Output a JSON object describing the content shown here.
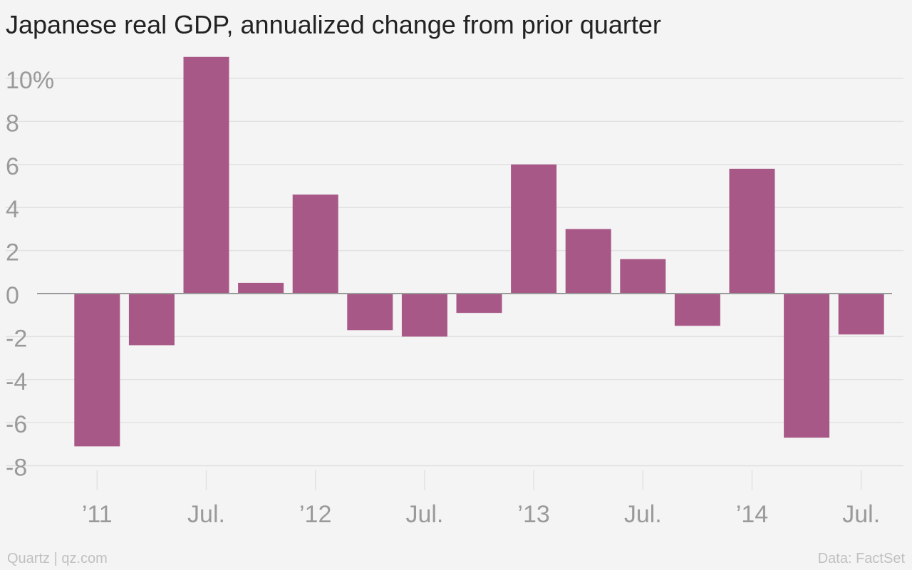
{
  "title": "Japanese real GDP, annualized change from prior quarter",
  "footer_left": "Quartz | qz.com",
  "footer_right": "Data: FactSet",
  "colors": {
    "bar": "#a85887",
    "grid": "#e2e2e2",
    "zero_line": "#9a9a9a",
    "tick_text": "#9a9a9a",
    "background": "#f4f4f4"
  },
  "chart_data": {
    "type": "bar",
    "title": "Japanese real GDP, annualized change from prior quarter",
    "xlabel": "",
    "ylabel": "",
    "ylim": [
      -8,
      11
    ],
    "categories": [
      "Q1 2011",
      "Q2 2011",
      "Q3 2011",
      "Q4 2011",
      "Q1 2012",
      "Q2 2012",
      "Q3 2012",
      "Q4 2012",
      "Q1 2013",
      "Q2 2013",
      "Q3 2013",
      "Q4 2013",
      "Q1 2014",
      "Q2 2014",
      "Q3 2014"
    ],
    "values": [
      -7.1,
      -2.4,
      11.0,
      0.5,
      4.6,
      -1.7,
      -2.0,
      -0.9,
      6.0,
      3.0,
      1.6,
      -1.5,
      5.8,
      -6.7,
      -1.9
    ],
    "y_ticks": [
      {
        "value": 10,
        "label": "10%"
      },
      {
        "value": 8,
        "label": "8"
      },
      {
        "value": 6,
        "label": "6"
      },
      {
        "value": 4,
        "label": "4"
      },
      {
        "value": 2,
        "label": "2"
      },
      {
        "value": 0,
        "label": "0"
      },
      {
        "value": -2,
        "label": "-2"
      },
      {
        "value": -4,
        "label": "-4"
      },
      {
        "value": -6,
        "label": "-6"
      },
      {
        "value": -8,
        "label": "-8"
      }
    ],
    "x_ticks": [
      {
        "index": 0,
        "label": "’11"
      },
      {
        "index": 2,
        "label": "Jul."
      },
      {
        "index": 4,
        "label": "’12"
      },
      {
        "index": 6,
        "label": "Jul."
      },
      {
        "index": 8,
        "label": "’13"
      },
      {
        "index": 10,
        "label": "Jul."
      },
      {
        "index": 12,
        "label": "’14"
      },
      {
        "index": 14,
        "label": "Jul."
      }
    ],
    "grid": true,
    "legend": "none"
  }
}
